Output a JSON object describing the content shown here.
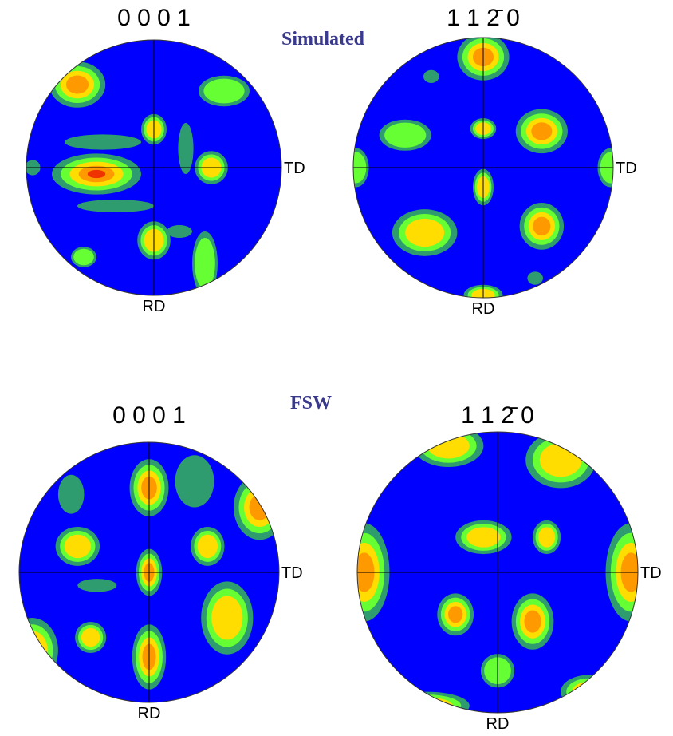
{
  "sections": [
    {
      "label": "Simulated",
      "panels": [
        {
          "title": "0 0 0 1",
          "x_label": "TD",
          "y_label": "RD"
        },
        {
          "title": "1 1 2̄ 0",
          "x_label": "TD",
          "y_label": "RD"
        }
      ]
    },
    {
      "label": "FSW",
      "panels": [
        {
          "title": "0 0 0 1",
          "x_label": "TD",
          "y_label": "RD"
        },
        {
          "title": "1 1 2̄ 0",
          "x_label": "TD",
          "y_label": "RD"
        }
      ]
    }
  ]
}
